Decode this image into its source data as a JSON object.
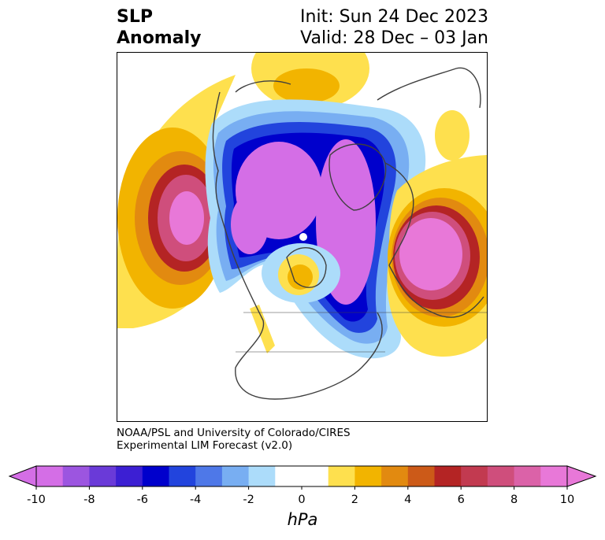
{
  "title": {
    "left_line1": "SLP",
    "left_line2": "Anomaly",
    "right_line1": "Init: Sun 24 Dec 2023",
    "right_line2": "Valid: 28 Dec – 03 Jan"
  },
  "credit": {
    "line1": "NOAA/PSL and University of Colorado/CIRES",
    "line2": "Experimental LIM Forecast (v2.0)"
  },
  "colorbar": {
    "unit_label": "hPa",
    "tick_labels": [
      "-10",
      "-8",
      "-6",
      "-4",
      "-2",
      "0",
      "2",
      "4",
      "6",
      "8",
      "10"
    ],
    "colors": [
      "#d46ee6",
      "#9c55e0",
      "#6a3ad8",
      "#3c1fd3",
      "#0000cc",
      "#2244dd",
      "#4e78e8",
      "#78aef2",
      "#acdcfa",
      "#ffffff",
      "#ffffff",
      "#fee04e",
      "#f2b400",
      "#e28a10",
      "#cc5a18",
      "#b42424",
      "#c23a50",
      "#cf4e7c",
      "#db62a8",
      "#e878d8"
    ],
    "extend_min_color": "#d46ee6",
    "extend_max_color": "#e878d8"
  },
  "map_colors": {
    "coast": "#3f3f3f",
    "neg_light": "#acdcfa",
    "neg_mid": "#78aef2",
    "neg_blue": "#2244dd",
    "neg_deep": "#0000cc",
    "neg_purple": "#d46ee6",
    "pos_light": "#fee04e",
    "pos_mid": "#f2b400",
    "pos_orange": "#e28a10",
    "pos_red": "#b42424",
    "pos_rose": "#cf4e7c",
    "pos_pink": "#e878d8"
  }
}
